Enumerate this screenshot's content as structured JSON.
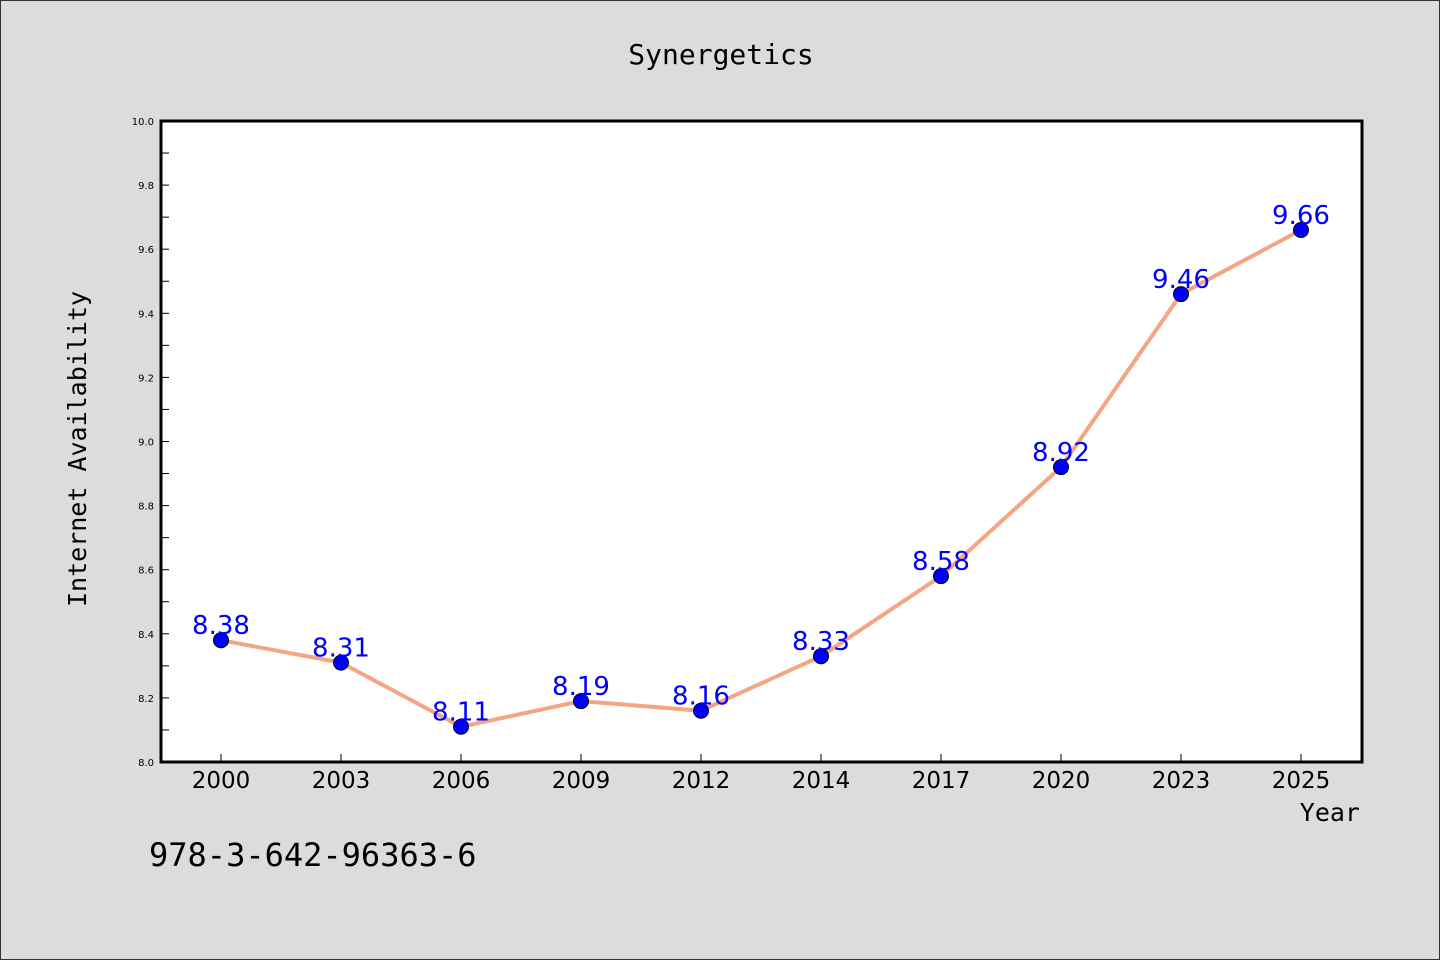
{
  "chart_data": {
    "type": "line",
    "title": "Synergetics",
    "xlabel": "Year",
    "ylabel": "Internet Availability",
    "categories": [
      "2000",
      "2003",
      "2006",
      "2009",
      "2012",
      "2014",
      "2017",
      "2020",
      "2023",
      "2025"
    ],
    "series": [
      {
        "values": [
          8.38,
          8.31,
          8.11,
          8.19,
          8.16,
          8.33,
          8.58,
          8.92,
          9.46,
          9.66
        ],
        "data_labels": [
          "8.38",
          "8.31",
          "8.11",
          "8.19",
          "8.16",
          "8.33",
          "8.58",
          "8.92",
          "9.46",
          "9.66"
        ],
        "line_color": "#f4a582",
        "marker_color": "#0000ff"
      }
    ],
    "ylim": [
      8.0,
      10.0
    ],
    "yticks": [
      "8.0",
      "8.2",
      "8.4",
      "8.6",
      "8.8",
      "9.0",
      "9.2",
      "9.4",
      "9.6",
      "9.8",
      "10.0"
    ],
    "grid": false,
    "data_label_color": "#0000ff"
  },
  "footer": {
    "isbn": "978-3-642-96363-6"
  },
  "colors": {
    "background": "#dcdcdc",
    "plot_background": "#ffffff"
  }
}
